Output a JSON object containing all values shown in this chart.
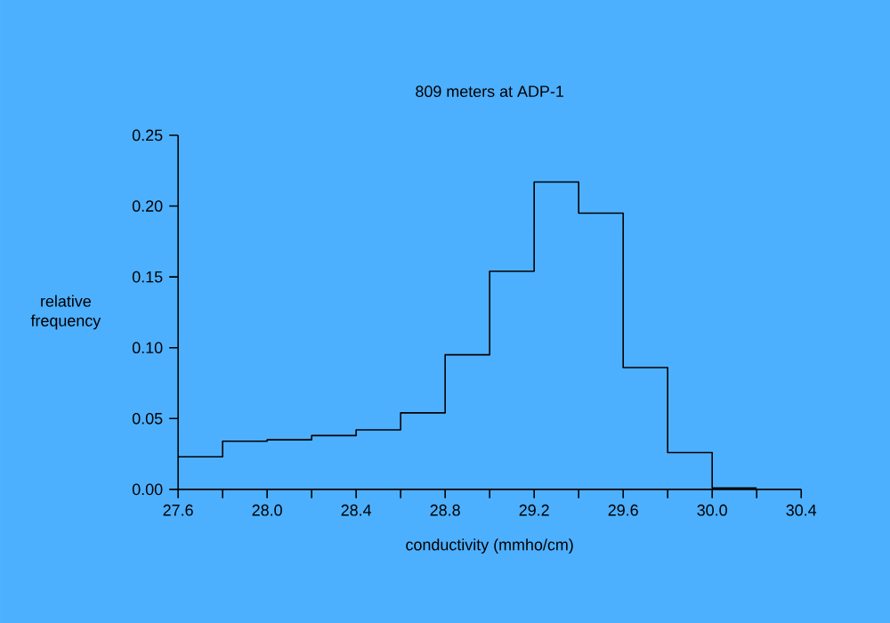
{
  "chart_data": {
    "type": "histogram",
    "title": "809 meters at ADP-1",
    "xlabel": "conductivity (mmho/cm)",
    "ylabel": "relative frequency",
    "color": "#000000",
    "bins": [
      27.6,
      27.8,
      28.0,
      28.2,
      28.4,
      28.6,
      28.8,
      29.0,
      29.2,
      29.4,
      29.6,
      29.8,
      30.0,
      30.2
    ],
    "values": [
      0.023,
      0.034,
      0.035,
      0.038,
      0.042,
      0.054,
      0.095,
      0.154,
      0.217,
      0.195,
      0.086,
      0.026,
      0.001
    ],
    "xlim": [
      27.6,
      30.4
    ],
    "ylim": [
      0,
      0.25
    ],
    "xticks": [
      {
        "value": 27.6,
        "label": "27.6"
      },
      {
        "value": 27.8,
        "label": null
      },
      {
        "value": 28.0,
        "label": "28.0"
      },
      {
        "value": 28.2,
        "label": null
      },
      {
        "value": 28.4,
        "label": "28.4"
      },
      {
        "value": 28.6,
        "label": null
      },
      {
        "value": 28.8,
        "label": "28.8"
      },
      {
        "value": 29.0,
        "label": null
      },
      {
        "value": 29.2,
        "label": "29.2"
      },
      {
        "value": 29.4,
        "label": null
      },
      {
        "value": 29.6,
        "label": "29.6"
      },
      {
        "value": 29.8,
        "label": null
      },
      {
        "value": 30.0,
        "label": "30.0"
      },
      {
        "value": 30.2,
        "label": null
      },
      {
        "value": 30.4,
        "label": "30.4"
      }
    ],
    "yticks": [
      {
        "value": 0,
        "label": "0.00"
      },
      {
        "value": 0.05,
        "label": "0.05"
      },
      {
        "value": 0.1,
        "label": "0.10"
      },
      {
        "value": 0.15,
        "label": "0.15"
      },
      {
        "value": 0.2,
        "label": "0.20"
      },
      {
        "value": 0.25,
        "label": "0.25"
      }
    ],
    "grid": false
  }
}
